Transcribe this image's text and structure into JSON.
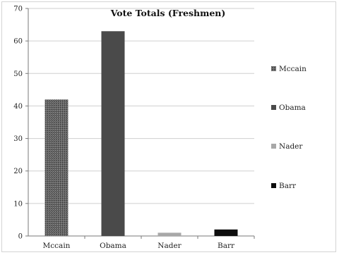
{
  "chart_data": {
    "type": "bar",
    "title": "Vote Totals (Freshmen)",
    "categories": [
      "Mccain",
      "Obama",
      "Nader",
      "Barr"
    ],
    "values": [
      42,
      63,
      1,
      2
    ],
    "ylim": [
      0,
      70
    ],
    "yticks": [
      0,
      10,
      20,
      30,
      40,
      50,
      60,
      70
    ],
    "grid": true,
    "legend": {
      "placement": "right",
      "entries": [
        "Mccain",
        "Obama",
        "Nader",
        "Barr"
      ]
    },
    "colors": [
      "#6b6b6b",
      "#4a4a4a",
      "#a8a8a8",
      "#0d0d0d"
    ],
    "pattern": [
      "textured",
      "solid",
      "solid",
      "solid"
    ]
  }
}
